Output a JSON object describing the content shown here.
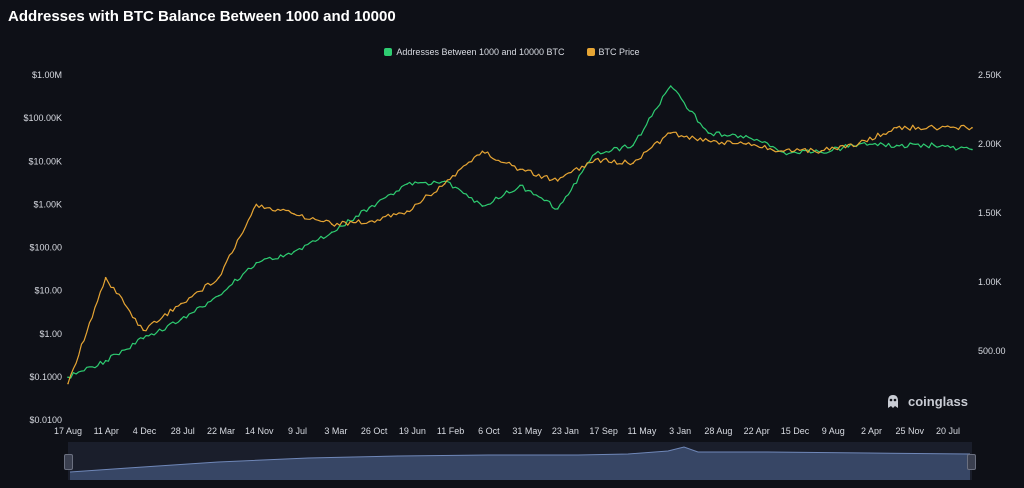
{
  "chart_data": {
    "type": "line",
    "title": "Addresses with BTC Balance Between 1000 and 10000",
    "legend": {
      "placement": "top-center"
    },
    "x_tick_labels": [
      "17 Aug",
      "11 Apr",
      "4 Dec",
      "28 Jul",
      "22 Mar",
      "14 Nov",
      "9 Jul",
      "3 Mar",
      "26 Oct",
      "19 Jun",
      "11 Feb",
      "6 Oct",
      "31 May",
      "23 Jan",
      "17 Sep",
      "11 May",
      "3 Jan",
      "28 Aug",
      "22 Apr",
      "15 Dec",
      "9 Aug",
      "2 Apr",
      "25 Nov",
      "20 Jul"
    ],
    "y_left": {
      "scale": "log",
      "tick_labels": [
        "$1.00M",
        "$100.00K",
        "$10.00K",
        "$1.00K",
        "$100.00",
        "$10.00",
        "$1.00",
        "$0.1000",
        "$0.0100"
      ]
    },
    "y_right": {
      "tick_labels": [
        "2.50K",
        "2.00K",
        "1.50K",
        "1.00K",
        "500.00"
      ]
    },
    "grid": false,
    "series": [
      {
        "name": "Addresses Between 1000 and 10000 BTC",
        "color": "#2ecc71",
        "axis": "right",
        "x_index": [
          0,
          1,
          2,
          3,
          4,
          5,
          6,
          7,
          8,
          9,
          10,
          11,
          12,
          13,
          14,
          15,
          16,
          17,
          18,
          19,
          20,
          21,
          22,
          23,
          24
        ],
        "values": [
          310,
          430,
          590,
          730,
          900,
          1140,
          1220,
          1360,
          1540,
          1710,
          1730,
          1550,
          1700,
          1530,
          1930,
          1990,
          2420,
          2080,
          2060,
          1940,
          1940,
          2000,
          1990,
          1990,
          1960
        ]
      },
      {
        "name": "BTC Price",
        "color": "#e6a534",
        "axis": "left",
        "x_index": [
          0,
          1,
          2,
          3,
          4,
          5,
          6,
          7,
          8,
          9,
          10,
          11,
          12,
          13,
          14,
          15,
          16,
          17,
          18,
          19,
          20,
          21,
          22,
          23,
          24
        ],
        "values": [
          0.07,
          20,
          1.2,
          5,
          20,
          1000,
          600,
          350,
          400,
          700,
          3000,
          17000,
          6500,
          3500,
          11000,
          9000,
          45000,
          30000,
          25000,
          17000,
          17500,
          26000,
          60000,
          60000,
          60000
        ]
      }
    ]
  },
  "watermark": {
    "text": "coinglass"
  }
}
